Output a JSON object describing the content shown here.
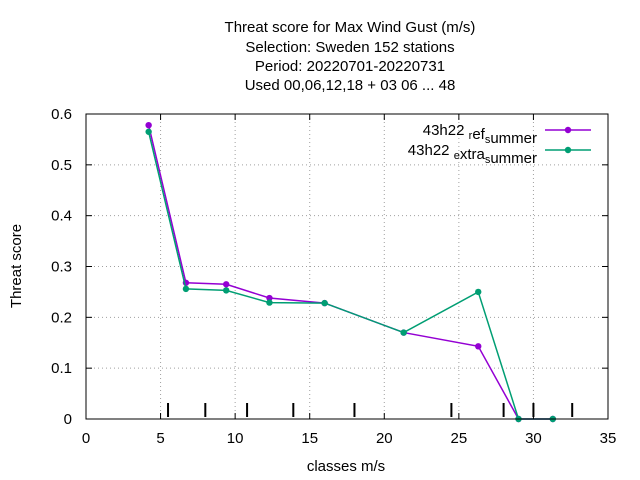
{
  "chart_data": {
    "type": "line",
    "title_lines": [
      "Threat score  for Max Wind Gust (m/s)",
      "Selection: Sweden    152 stations",
      "Period: 20220701-20220731",
      "Used  00,06,12,18  + 03 06 ... 48"
    ],
    "xlabel": "classes m/s",
    "ylabel": "Threat score",
    "xlim": [
      0,
      35
    ],
    "ylim": [
      0,
      0.6
    ],
    "x_ticks": [
      "0",
      "5",
      "10",
      "15",
      "20",
      "25",
      "30",
      "35"
    ],
    "y_ticks": [
      "0",
      "0.1",
      "0.2",
      "0.3",
      "0.4",
      "0.5",
      "0.6"
    ],
    "grid": true,
    "legend_position": "top-right",
    "series": [
      {
        "name": "43h22_ref_summer",
        "legend_parts": [
          "43h22 ",
          "r",
          "ef",
          "s",
          "ummer"
        ],
        "color": "#9400d3",
        "x": [
          4.2,
          6.7,
          9.4,
          12.3,
          16.0,
          21.3,
          26.3,
          29.0,
          31.3
        ],
        "y": [
          0.578,
          0.268,
          0.265,
          0.238,
          0.228,
          0.17,
          0.143,
          0.0,
          0.0
        ]
      },
      {
        "name": "43h22_extra_summer",
        "legend_parts": [
          "43h22 ",
          "e",
          "xtra",
          "s",
          "ummer"
        ],
        "color": "#009e73",
        "x": [
          4.2,
          6.7,
          9.4,
          12.3,
          16.0,
          21.3,
          26.3,
          29.0,
          31.3
        ],
        "y": [
          0.565,
          0.256,
          0.253,
          0.229,
          0.228,
          0.17,
          0.25,
          0.0,
          0.0
        ]
      }
    ],
    "class_boundaries": [
      5.5,
      8.0,
      10.8,
      13.9,
      18.0,
      24.5,
      28.0,
      30.0,
      32.6
    ]
  }
}
